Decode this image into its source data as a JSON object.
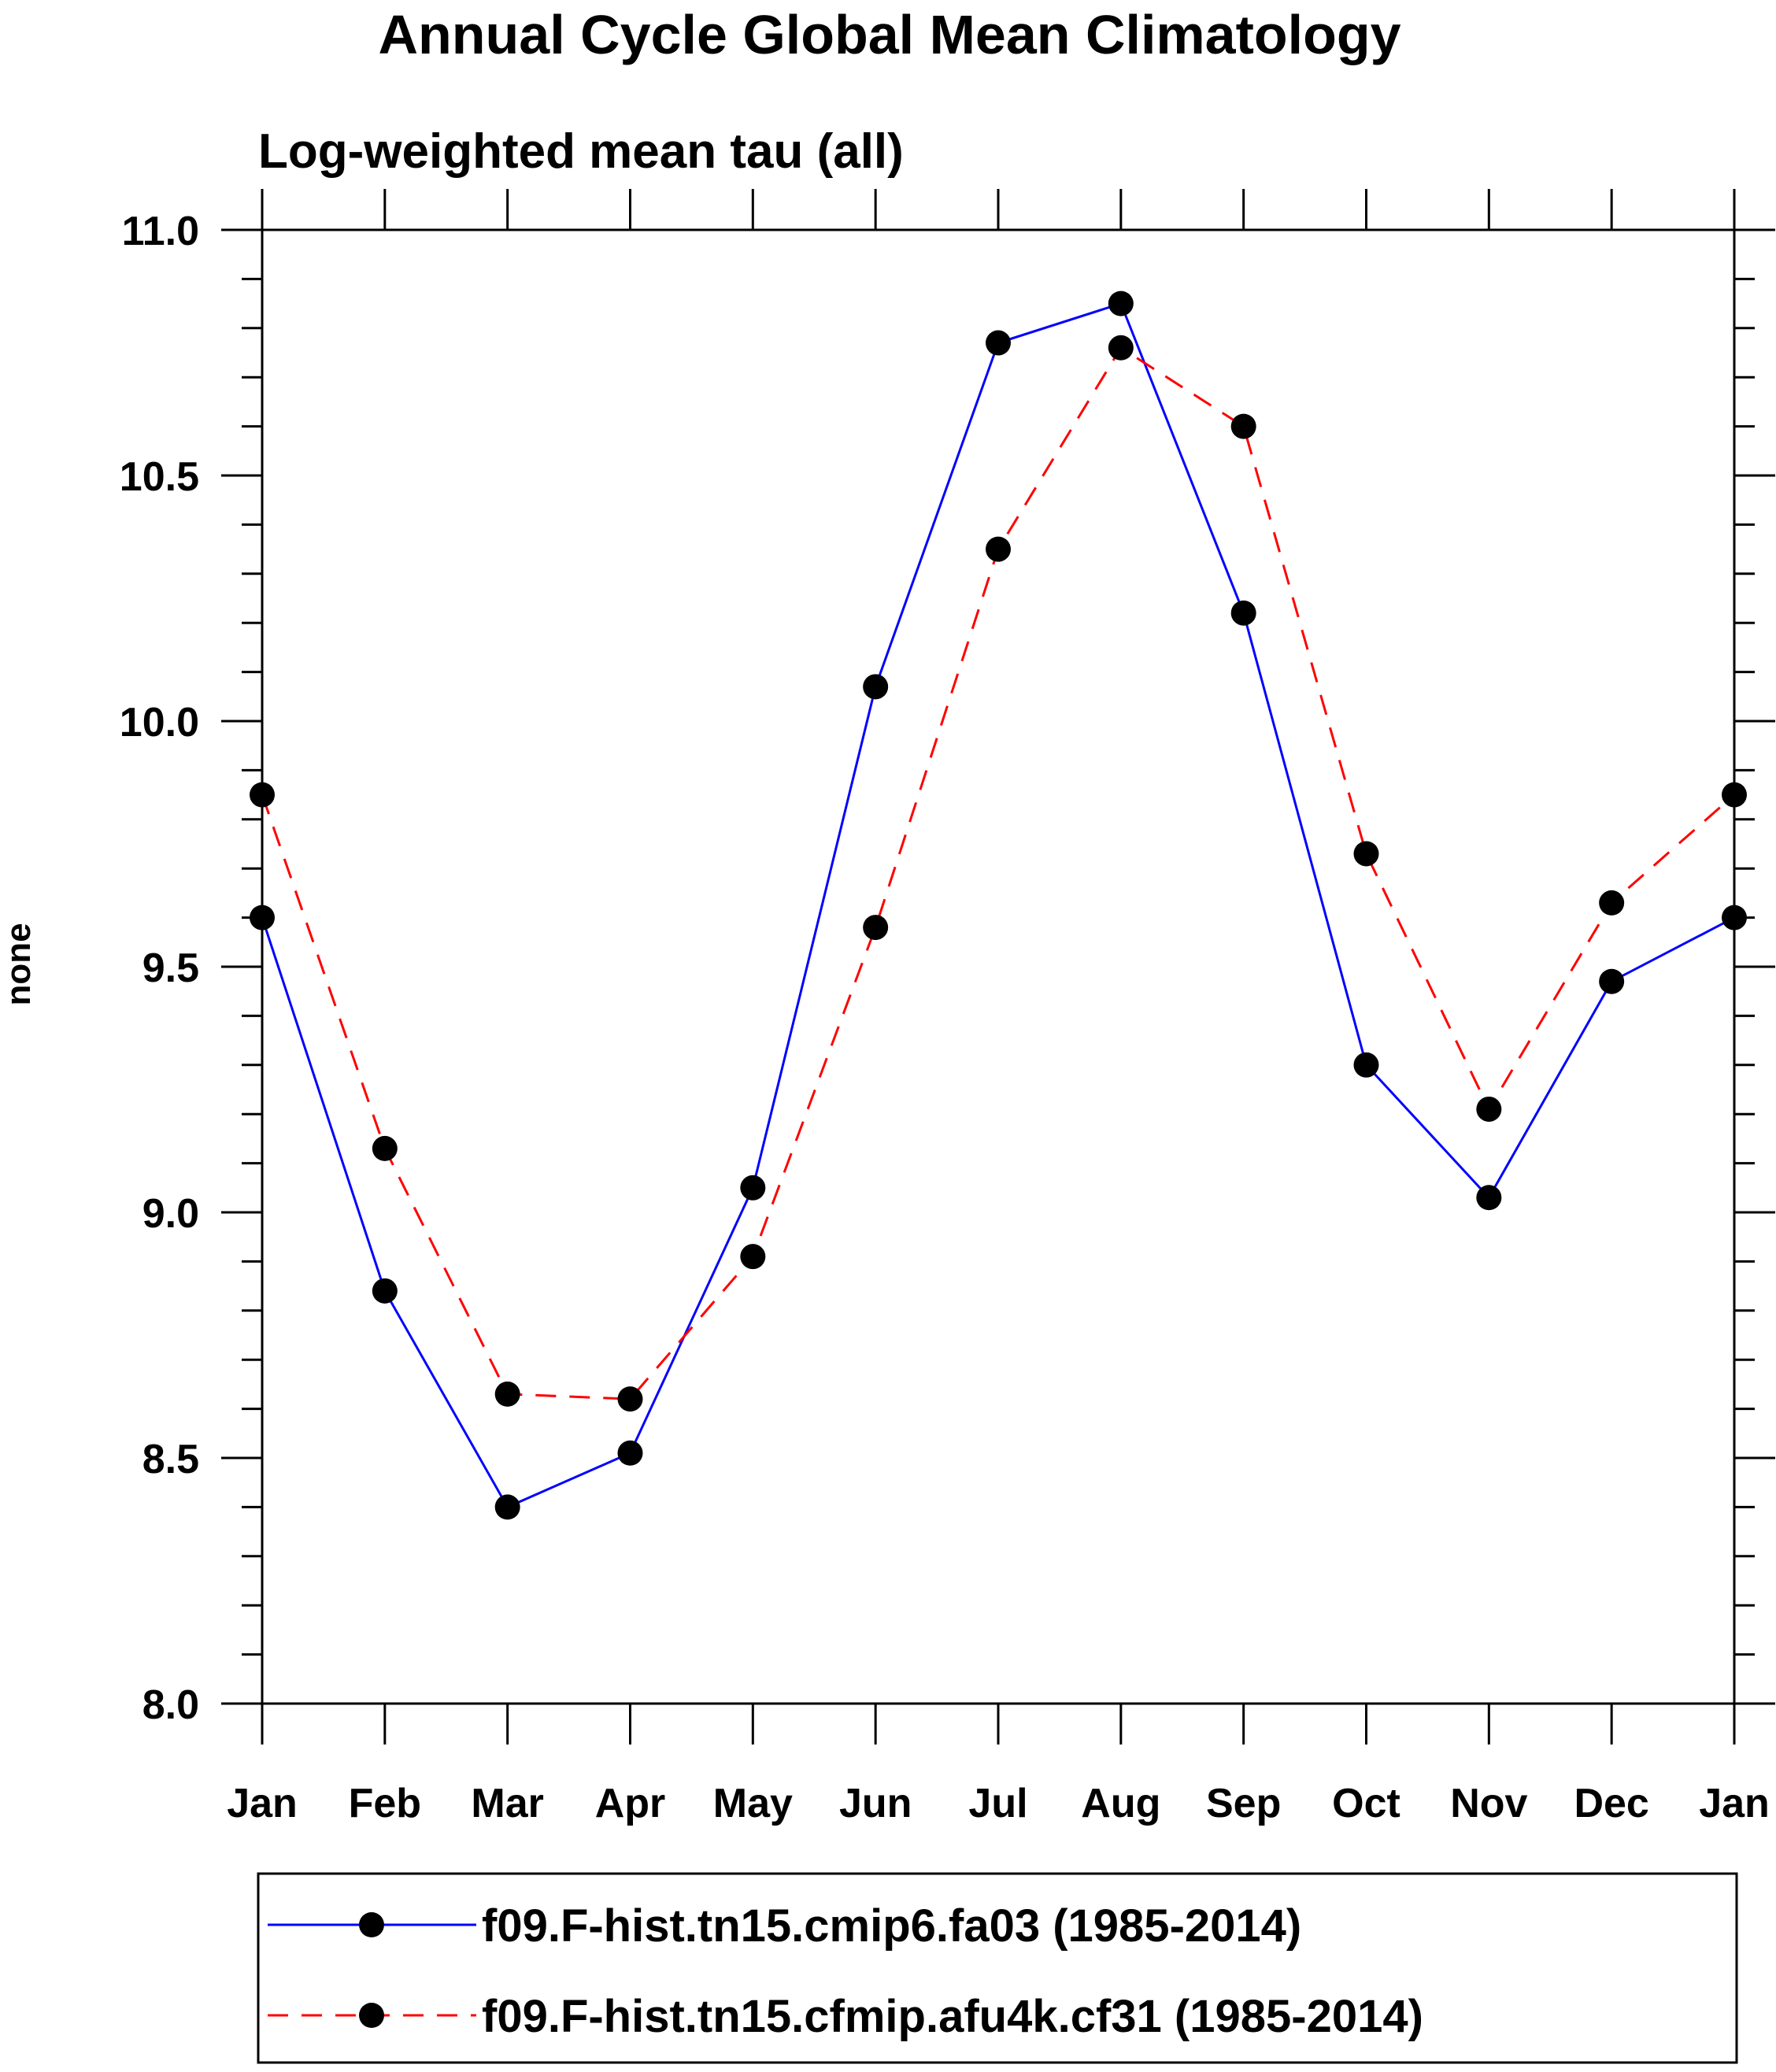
{
  "chart_data": {
    "type": "line",
    "title": "Annual Cycle Global Mean Climatology",
    "subtitle": "Log-weighted mean tau (all)",
    "xlabel": "",
    "ylabel": "none",
    "categories": [
      "Jan",
      "Feb",
      "Mar",
      "Apr",
      "May",
      "Jun",
      "Jul",
      "Aug",
      "Sep",
      "Oct",
      "Nov",
      "Dec",
      "Jan"
    ],
    "ylim": [
      8.0,
      11.0
    ],
    "y_ticks": [
      "8.0",
      "8.5",
      "9.0",
      "9.5",
      "10.0",
      "10.5",
      "11.0"
    ],
    "y_tick_values": [
      8.0,
      8.5,
      9.0,
      9.5,
      10.0,
      10.5,
      11.0
    ],
    "y_minor_step": 0.1,
    "grid": false,
    "legend_position": "bottom",
    "series": [
      {
        "name": "f09.F-hist.tn15.cmip6.fa03 (1985-2014)",
        "color": "#0000ff",
        "style": "solid",
        "marker": "circle",
        "values": [
          9.6,
          8.84,
          8.4,
          8.51,
          9.05,
          10.07,
          10.77,
          10.85,
          10.22,
          9.3,
          9.03,
          9.47,
          9.6
        ]
      },
      {
        "name": "f09.F-hist.tn15.cfmip.afu4k.cf31 (1985-2014)",
        "color": "#ff0000",
        "style": "dashed",
        "marker": "circle",
        "values": [
          9.85,
          9.13,
          8.63,
          8.62,
          8.91,
          9.58,
          10.35,
          10.76,
          10.6,
          9.73,
          9.21,
          9.63,
          9.85
        ]
      }
    ]
  }
}
